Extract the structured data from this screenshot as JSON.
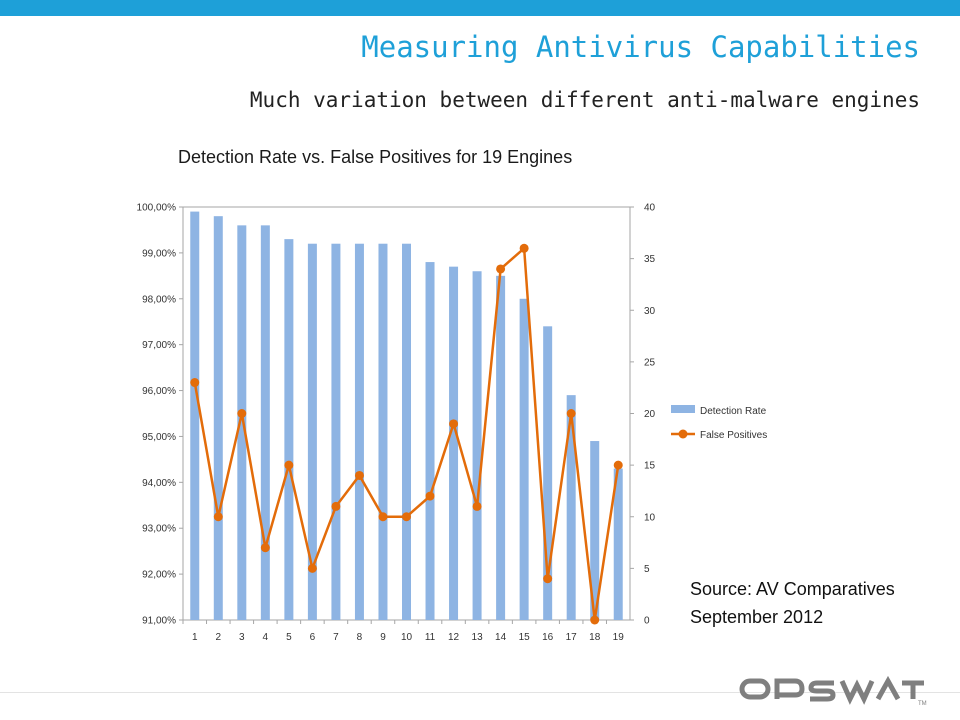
{
  "colors": {
    "top_bar": "#1ea0d8",
    "title": "#1ea0d8",
    "bar": "#8eb4e3",
    "line": "#e36c0a",
    "logo": "#7f7f7f"
  },
  "slide": {
    "title": "Measuring Antivirus Capabilities",
    "subtitle": "Much variation between different anti-malware engines"
  },
  "source": {
    "line1": "Source: AV Comparatives",
    "line2": "September 2012"
  },
  "logo": {
    "text": "OPSWAT",
    "tm": "TM"
  },
  "chart_data": {
    "type": "bar",
    "title": "Detection Rate vs. False Positives for 19 Engines",
    "categories": [
      "1",
      "2",
      "3",
      "4",
      "5",
      "6",
      "7",
      "8",
      "9",
      "10",
      "11",
      "12",
      "13",
      "14",
      "15",
      "16",
      "17",
      "18",
      "19"
    ],
    "series": [
      {
        "name": "Detection Rate",
        "type": "bar",
        "axis": "left",
        "values": [
          99.9,
          99.8,
          99.6,
          99.6,
          99.3,
          99.2,
          99.2,
          99.2,
          99.2,
          99.2,
          98.8,
          98.7,
          98.6,
          98.5,
          98.0,
          97.4,
          95.9,
          94.9,
          94.3
        ]
      },
      {
        "name": "False Positives",
        "type": "line",
        "axis": "right",
        "values": [
          23,
          10,
          20,
          7,
          15,
          5,
          11,
          14,
          10,
          10,
          12,
          19,
          11,
          34,
          36,
          4,
          20,
          0,
          15
        ]
      }
    ],
    "left_axis": {
      "ylim": [
        91,
        100
      ],
      "tick_labels": [
        "91,00%",
        "92,00%",
        "93,00%",
        "94,00%",
        "95,00%",
        "96,00%",
        "97,00%",
        "98,00%",
        "99,00%",
        "100,00%"
      ]
    },
    "right_axis": {
      "ylim": [
        0,
        40
      ],
      "tick_labels": [
        "0",
        "5",
        "10",
        "15",
        "20",
        "25",
        "30",
        "35",
        "40"
      ]
    },
    "grid": false,
    "legend_position": "right"
  }
}
